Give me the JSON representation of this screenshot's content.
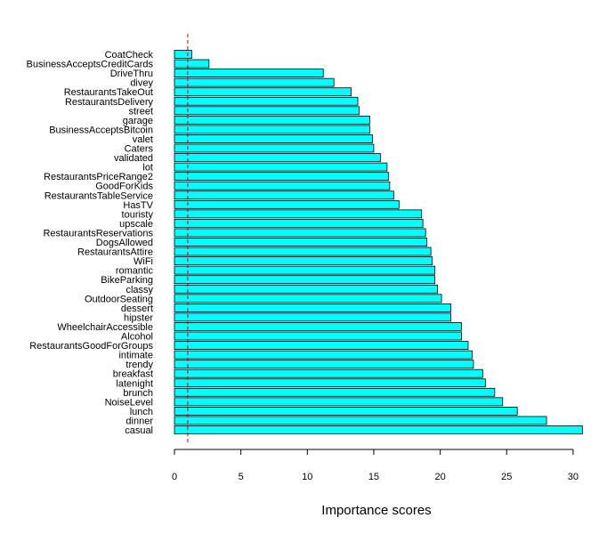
{
  "chart_data": {
    "type": "bar",
    "orientation": "horizontal",
    "xlabel": "Importance scores",
    "ylabel": "",
    "title": "",
    "xlim": [
      0,
      31
    ],
    "xticks": [
      0,
      5,
      10,
      15,
      20,
      25,
      30
    ],
    "grid": false,
    "bar_color": "#00ffff",
    "reference_line": {
      "x": 1.0,
      "color": "#cc0000",
      "style": "dashed"
    },
    "categories": [
      "CoatCheck",
      "BusinessAcceptsCreditCards",
      "DriveThru",
      "divey",
      "RestaurantsTakeOut",
      "RestaurantsDelivery",
      "street",
      "garage",
      "BusinessAcceptsBitcoin",
      "valet",
      "Caters",
      "validated",
      "lot",
      "RestaurantsPriceRange2",
      "GoodForKids",
      "RestaurantsTableService",
      "HasTV",
      "touristy",
      "upscale",
      "RestaurantsReservations",
      "DogsAllowed",
      "RestaurantsAttire",
      "WiFi",
      "romantic",
      "BikeParking",
      "classy",
      "OutdoorSeating",
      "dessert",
      "hipster",
      "WheelchairAccessible",
      "Alcohol",
      "RestaurantsGoodForGroups",
      "intimate",
      "trendy",
      "breakfast",
      "latenight",
      "brunch",
      "NoiseLevel",
      "lunch",
      "dinner",
      "casual"
    ],
    "values": [
      1.3,
      2.6,
      11.2,
      12.0,
      13.3,
      13.8,
      13.9,
      14.7,
      14.7,
      14.9,
      15.0,
      15.5,
      16.0,
      16.1,
      16.2,
      16.5,
      16.9,
      18.6,
      18.7,
      18.9,
      19.0,
      19.3,
      19.4,
      19.6,
      19.6,
      19.8,
      20.1,
      20.8,
      20.8,
      21.6,
      21.6,
      22.1,
      22.4,
      22.5,
      23.2,
      23.4,
      24.1,
      24.7,
      25.8,
      28.0,
      30.7
    ]
  }
}
